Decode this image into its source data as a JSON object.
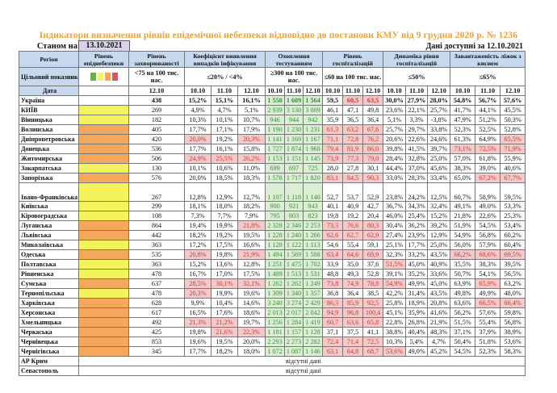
{
  "title": "Індикатори визначення рівнів епідемічної небезпеки відповідно до постанови КМУ від 9 грудня 2020 р. № 1236",
  "as_of_label": "Станом на",
  "as_of_date": "13.10.2021",
  "available_label": "Дані доступні за  12.10.2021",
  "headers": {
    "region": "Регіон",
    "level": "Рівень епіднебезпеки",
    "incidence": "Рівень захворюваності",
    "positivity": "Коефіцієнт виявлення випадків інфікування",
    "testing": "Охоплення тестуванням",
    "hospital": "Рівень госпіталізацій",
    "dynamics": "Динаміка рівня госпіталізацій",
    "beds": "Завантаженість ліжок з киснем"
  },
  "targets": {
    "label": "Цільовий показник",
    "level_colors": [
      "#6ab04c",
      "#f3f35b",
      "#f5a75c",
      "#e05555"
    ],
    "incidence": "<75 на 100 тис. нас.",
    "positivity": "≤20% / <4%",
    "testing": "≥300 на 100 тис. нас.",
    "hospital": "≤60 на 100 тис. нас.",
    "dynamics": "≤50%",
    "beds": "≤65%"
  },
  "dates": {
    "label": "Дата",
    "incidence": "12.10",
    "group": [
      "10.10",
      "11.10",
      "12.10"
    ]
  },
  "colors": {
    "yellow": "#f3f35b",
    "orange": "#f5a75c",
    "red_bg": "#f5c9c9",
    "red_text": "#c0392b",
    "test_bg": "#d9eed2",
    "test_text": "#3a8f3a",
    "header_bg": "#c6d9ef",
    "title": "#e8a23a"
  },
  "rows": [
    {
      "region": "Україна",
      "level": "",
      "v": [
        "438",
        "15,2%",
        "15,1%",
        "16,1%",
        "1 558",
        "1 609",
        "1 564",
        "59,5",
        "60,5",
        "63,5",
        "30,0%",
        "27,9%",
        "28,0%",
        "54,8%",
        "56,7%",
        "57,6%"
      ],
      "red": [
        8,
        9
      ]
    },
    {
      "region": "КИЇВ",
      "level": "yellow",
      "v": [
        "269",
        "4,9%",
        "4,7%",
        "5,1%",
        "2 939",
        "3 130",
        "3 009",
        "46,1",
        "47,1",
        "49,8",
        "23,6%",
        "22,1%",
        "25,7%",
        "41,7%",
        "44,1%",
        "45,5%"
      ],
      "red": []
    },
    {
      "region": "Вінницька",
      "level": "yellow",
      "v": [
        "182",
        "10,3%",
        "10,1%",
        "10,7%",
        "946",
        "944",
        "942",
        "35,9",
        "36,5",
        "36,4",
        "5,1%",
        "3,3%",
        "-3,8%",
        "47,9%",
        "51,2%",
        "50,3%"
      ],
      "red": []
    },
    {
      "region": "Волинська",
      "level": "orange",
      "v": [
        "405",
        "17,7%",
        "17,1%",
        "17,9%",
        "1 190",
        "1 230",
        "1 231",
        "61,3",
        "63,2",
        "67,6",
        "25,7%",
        "29,7%",
        "33,8%",
        "52,3%",
        "52,5%",
        "52,8%"
      ],
      "red": [
        7,
        8,
        9
      ]
    },
    {
      "region": "Дніпропетровська",
      "level": "orange",
      "v": [
        "420",
        "20,0%",
        "19,2%",
        "20,3%",
        "1 141",
        "1 169",
        "1 167",
        "71,1",
        "72,8",
        "76,2",
        "20,6%",
        "22,6%",
        "24,6%",
        "61,3%",
        "64,9%",
        "65,5%"
      ],
      "red": [
        1,
        3,
        7,
        8,
        9,
        15
      ]
    },
    {
      "region": "Донецька",
      "level": "orange",
      "v": [
        "536",
        "17,7%",
        "16,1%",
        "15,8%",
        "1 727",
        "1 874",
        "1 968",
        "79,4",
        "81,9",
        "86,0",
        "39,8%",
        "41,5%",
        "39,7%",
        "73,1%",
        "72,5%",
        "71,9%"
      ],
      "red": [
        7,
        8,
        9,
        13,
        14,
        15
      ]
    },
    {
      "region": "Житомирська",
      "level": "orange",
      "v": [
        "506",
        "24,9%",
        "25,5%",
        "26,2%",
        "1 153",
        "1 151",
        "1 145",
        "73,9",
        "77,3",
        "79,0",
        "28,4%",
        "32,8%",
        "25,0%",
        "57,0%",
        "61,8%",
        "55,9%"
      ],
      "red": [
        1,
        2,
        3,
        7,
        8,
        9
      ]
    },
    {
      "region": "Закарпатська",
      "level": "yellow",
      "v": [
        "130",
        "10,1%",
        "10,6%",
        "11,0%",
        "699",
        "697",
        "725",
        "28,0",
        "27,8",
        "30,1",
        "44,4%",
        "37,0%",
        "45,6%",
        "38,3%",
        "39,0%",
        "40,6%"
      ],
      "red": []
    },
    {
      "region": "Запорізька",
      "level": "orange",
      "v": [
        "576",
        "20,0%",
        "18,5%",
        "18,3%",
        "1 578",
        "1 717",
        "1 820",
        "83,1",
        "84,5",
        "90,3",
        "33,0%",
        "28,3%",
        "33,4%",
        "65,0%",
        "67,2%",
        "67,7%"
      ],
      "red": [
        7,
        8,
        9,
        14,
        15
      ]
    },
    {
      "region": "Івано-Франківська",
      "level": "yellow",
      "tall": true,
      "v": [
        "267",
        "12,8%",
        "12,9%",
        "12,7%",
        "1 107",
        "1 118",
        "1 140",
        "52,7",
        "53,7",
        "52,9",
        "23,8%",
        "24,2%",
        "12,5%",
        "60,7%",
        "58,9%",
        "59,5%"
      ],
      "red": []
    },
    {
      "region": "Київська",
      "level": "yellow",
      "v": [
        "299",
        "18,1%",
        "18,0%",
        "18,2%",
        "900",
        "921",
        "943",
        "40,1",
        "40,9",
        "42,7",
        "36,7%",
        "34,3%",
        "32,4%",
        "49,1%",
        "49,0%",
        "53,3%"
      ],
      "red": []
    },
    {
      "region": "Кіровоградська",
      "level": "yellow",
      "v": [
        "108",
        "7,3%",
        "7,7%",
        "7,9%",
        "795",
        "803",
        "823",
        "19,8",
        "19,2",
        "20,4",
        "46,0%",
        "25,4%",
        "15,2%",
        "21,8%",
        "22,6%",
        "25,3%"
      ],
      "red": []
    },
    {
      "region": "Луганська",
      "level": "orange",
      "v": [
        "864",
        "19,4%",
        "19,9%",
        "21,8%",
        "2 328",
        "2 346",
        "2 253",
        "73,3",
        "76,6",
        "80,3",
        "30,4%",
        "36,2%",
        "39,2%",
        "51,9%",
        "54,5%",
        "53,4%"
      ],
      "red": [
        3,
        7,
        8,
        9
      ]
    },
    {
      "region": "Львівська",
      "level": "orange",
      "v": [
        "442",
        "18,2%",
        "19,2%",
        "19,5%",
        "1 228",
        "1 240",
        "1 266",
        "62,6",
        "62,7",
        "62,9",
        "27,4%",
        "23,9%",
        "12,9%",
        "54,9%",
        "56,8%",
        "60,2%"
      ],
      "red": [
        7,
        8,
        9
      ]
    },
    {
      "region": "Миколаївська",
      "level": "yellow",
      "v": [
        "363",
        "17,2%",
        "17,5%",
        "16,6%",
        "1 128",
        "1 122",
        "1 113",
        "54,6",
        "55,4",
        "59,1",
        "25,1%",
        "17,7%",
        "25,0%",
        "56,0%",
        "57,9%",
        "60,4%"
      ],
      "red": []
    },
    {
      "region": "Одеська",
      "level": "orange",
      "v": [
        "535",
        "20,8%",
        "19,8%",
        "21,9%",
        "1 494",
        "1 569",
        "1 508",
        "63,4",
        "64,6",
        "69,9",
        "32,3%",
        "33,2%",
        "43,5%",
        "66,2%",
        "68,6%",
        "69,5%"
      ],
      "red": [
        1,
        3,
        7,
        8,
        9,
        13,
        14,
        15
      ]
    },
    {
      "region": "Полтавська",
      "level": "yellow",
      "v": [
        "363",
        "15,2%",
        "13,6%",
        "12,8%",
        "1 251",
        "1 475",
        "1 702",
        "33,9",
        "35,0",
        "37,6",
        "51,5%",
        "45,0%",
        "40,9%",
        "35,5%",
        "38,3%",
        "39,5%"
      ],
      "red": [
        10
      ]
    },
    {
      "region": "Рівненська",
      "level": "yellow",
      "v": [
        "478",
        "16,7%",
        "17,0%",
        "17,5%",
        "1 489",
        "1 513",
        "1 531",
        "48,8",
        "49,3",
        "52,8",
        "39,1%",
        "35,2%",
        "33,6%",
        "50,7%",
        "54,1%",
        "56,5%"
      ],
      "red": []
    },
    {
      "region": "Сумська",
      "level": "orange",
      "v": [
        "637",
        "28,5%",
        "30,1%",
        "32,1%",
        "1 262",
        "1 262",
        "1 249",
        "73,8",
        "74,9",
        "78,8",
        "54,9%",
        "49,9%",
        "45,0%",
        "63,9%",
        "65,9%",
        "63,2%"
      ],
      "red": [
        1,
        2,
        3,
        7,
        8,
        9,
        10,
        14
      ]
    },
    {
      "region": "Тернопільська",
      "level": "yellow",
      "v": [
        "478",
        "20,3%",
        "19,9%",
        "19,6%",
        "1 309",
        "1 340",
        "1 357",
        "36,8",
        "36,4",
        "38,5",
        "42,2%",
        "31,4%",
        "43,5%",
        "49,8%",
        "49,9%",
        "48,0%"
      ],
      "red": [
        1
      ]
    },
    {
      "region": "Харківська",
      "level": "orange",
      "v": [
        "628",
        "9,9%",
        "10,4%",
        "14,6%",
        "3 240",
        "3 274",
        "2 429",
        "86,3",
        "85,9",
        "92,5",
        "25,8%",
        "18,9%",
        "20,8%",
        "63,6%",
        "66,5%",
        "66,4%"
      ],
      "red": [
        7,
        8,
        9,
        14,
        15
      ]
    },
    {
      "region": "Херсонська",
      "level": "orange",
      "v": [
        "617",
        "16,5%",
        "17,6%",
        "18,6%",
        "2 013",
        "2 017",
        "2 042",
        "94,9",
        "96,8",
        "100,4",
        "45,1%",
        "35,9%",
        "41,6%",
        "56,2%",
        "57,6%",
        "59,8%"
      ],
      "red": [
        7,
        8,
        9
      ]
    },
    {
      "region": "Хмельницька",
      "level": "orange",
      "v": [
        "492",
        "21,3%",
        "21,2%",
        "19,7%",
        "1 256",
        "1 284",
        "1 419",
        "60,7",
        "63,6",
        "65,8",
        "22,8%",
        "26,8%",
        "21,9%",
        "51,5%",
        "55,4%",
        "56,8%"
      ],
      "red": [
        1,
        2,
        7,
        8,
        9
      ]
    },
    {
      "region": "Черкаська",
      "level": "orange",
      "v": [
        "425",
        "19,8%",
        "21,6%",
        "22,3%",
        "1 181",
        "1 157",
        "1 128",
        "37,1",
        "37,5",
        "41,1",
        "38,8%",
        "40,4%",
        "48,3%",
        "37,1%",
        "37,9%",
        "38,9%"
      ],
      "red": [
        2,
        3
      ]
    },
    {
      "region": "Чернівецька",
      "level": "orange",
      "v": [
        "853",
        "19,6%",
        "19,5%",
        "20,0%",
        "2 293",
        "2 273",
        "2 282",
        "72,4",
        "71,4",
        "72,5",
        "10,3%",
        "5,4%",
        "4,7%",
        "50,4%",
        "51,8%",
        "53,6%"
      ],
      "red": [
        7,
        8,
        9
      ]
    },
    {
      "region": "Чернігівська",
      "level": "orange",
      "v": [
        "345",
        "17,7%",
        "18,2%",
        "18,0%",
        "1 072",
        "1 087",
        "1 146",
        "63,1",
        "64,8",
        "68,7",
        "53,6%",
        "49,0%",
        "45,2%",
        "54,5%",
        "52,3%",
        "58,3%"
      ],
      "red": [
        7,
        8,
        9,
        10
      ]
    }
  ],
  "no_data_rows": [
    {
      "region": "АР Крим",
      "text": "відсутні дані"
    },
    {
      "region": "Севастополь",
      "text": "відсутні дані"
    }
  ]
}
